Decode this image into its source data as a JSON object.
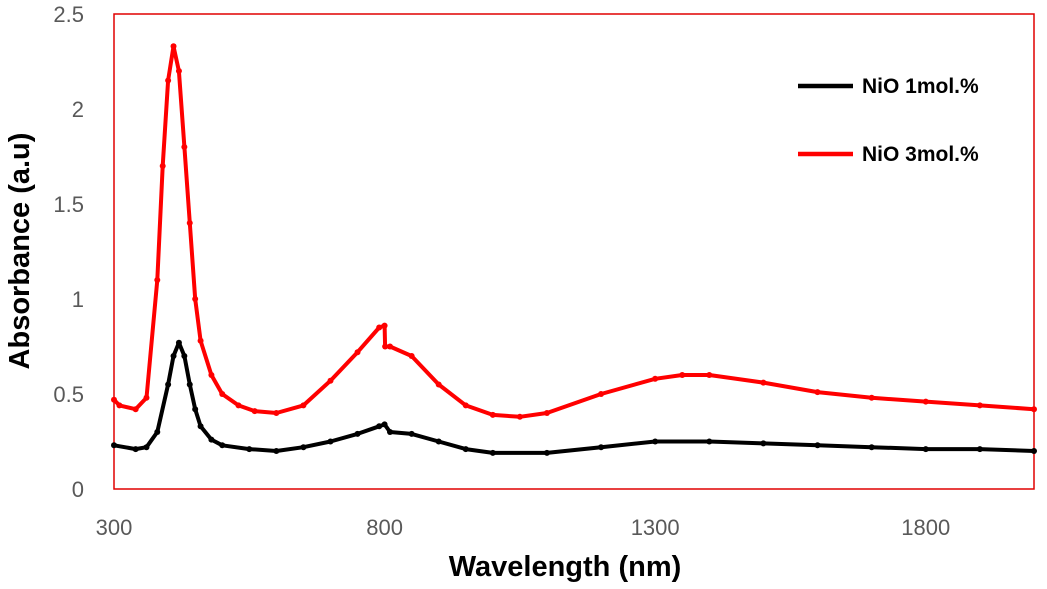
{
  "chart_data": {
    "type": "line",
    "title": "",
    "xlabel": "Wavelength (nm)",
    "ylabel": "Absorbance (a.u)",
    "xlim": [
      300,
      2000
    ],
    "ylim": [
      0,
      2.5
    ],
    "xticks": [
      300,
      800,
      1300,
      1800
    ],
    "yticks": [
      0,
      0.5,
      1,
      1.5,
      2,
      2.5
    ],
    "xtick_labels": [
      "300",
      "800",
      "1300",
      "1800"
    ],
    "ytick_labels": [
      "0",
      "0.5",
      "1",
      "1.5",
      "2",
      "2.5"
    ],
    "grid": false,
    "legend_position": "top-right",
    "frame_color": "#e00000",
    "series": [
      {
        "name": "NiO 1mol.%",
        "color": "#000000",
        "x": [
          300,
          340,
          360,
          380,
          400,
          410,
          420,
          430,
          440,
          450,
          460,
          480,
          500,
          550,
          600,
          650,
          700,
          750,
          790,
          800,
          810,
          850,
          900,
          950,
          1000,
          1100,
          1200,
          1300,
          1400,
          1500,
          1600,
          1700,
          1800,
          1900,
          2000
        ],
        "y": [
          0.23,
          0.21,
          0.22,
          0.3,
          0.55,
          0.7,
          0.77,
          0.7,
          0.55,
          0.42,
          0.33,
          0.26,
          0.23,
          0.21,
          0.2,
          0.22,
          0.25,
          0.29,
          0.33,
          0.34,
          0.3,
          0.29,
          0.25,
          0.21,
          0.19,
          0.19,
          0.22,
          0.25,
          0.25,
          0.24,
          0.23,
          0.22,
          0.21,
          0.21,
          0.2
        ]
      },
      {
        "name": "NiO 3mol.%",
        "color": "#ff0000",
        "x": [
          300,
          310,
          340,
          360,
          380,
          390,
          400,
          410,
          420,
          430,
          440,
          450,
          460,
          480,
          500,
          530,
          560,
          600,
          650,
          700,
          750,
          790,
          800,
          801,
          810,
          850,
          900,
          950,
          1000,
          1050,
          1100,
          1200,
          1300,
          1350,
          1400,
          1500,
          1600,
          1700,
          1800,
          1900,
          2000
        ],
        "y": [
          0.47,
          0.44,
          0.42,
          0.48,
          1.1,
          1.7,
          2.15,
          2.33,
          2.2,
          1.8,
          1.4,
          1.0,
          0.78,
          0.6,
          0.5,
          0.44,
          0.41,
          0.4,
          0.44,
          0.57,
          0.72,
          0.85,
          0.86,
          0.75,
          0.75,
          0.7,
          0.55,
          0.44,
          0.39,
          0.38,
          0.4,
          0.5,
          0.58,
          0.6,
          0.6,
          0.56,
          0.51,
          0.48,
          0.46,
          0.44,
          0.42
        ]
      }
    ]
  }
}
